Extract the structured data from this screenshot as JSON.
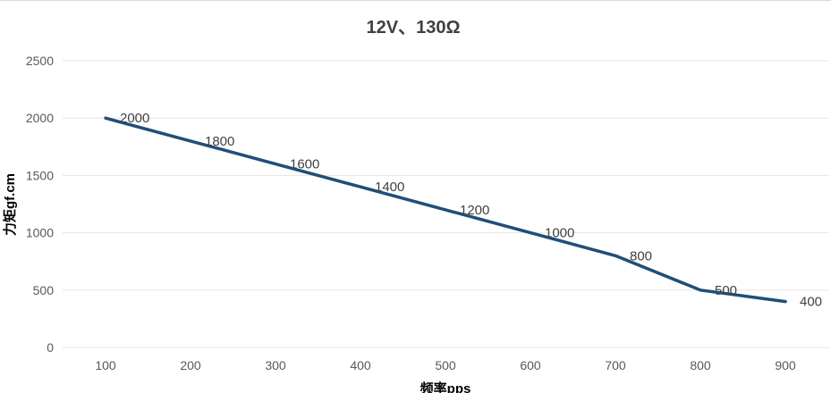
{
  "chart_data": {
    "type": "line",
    "title": "12V、130Ω",
    "xlabel": "频率pps",
    "ylabel": "力矩gf.cm",
    "x": [
      100,
      200,
      300,
      400,
      500,
      600,
      700,
      800,
      900
    ],
    "series": [
      {
        "values": [
          2000,
          1800,
          1600,
          1400,
          1200,
          1000,
          800,
          500,
          400
        ],
        "color": "#1f4e79"
      }
    ],
    "ylim": [
      0,
      2500
    ],
    "yticks": [
      0,
      500,
      1000,
      1500,
      2000,
      2500
    ],
    "grid": true,
    "data_labels": true
  }
}
